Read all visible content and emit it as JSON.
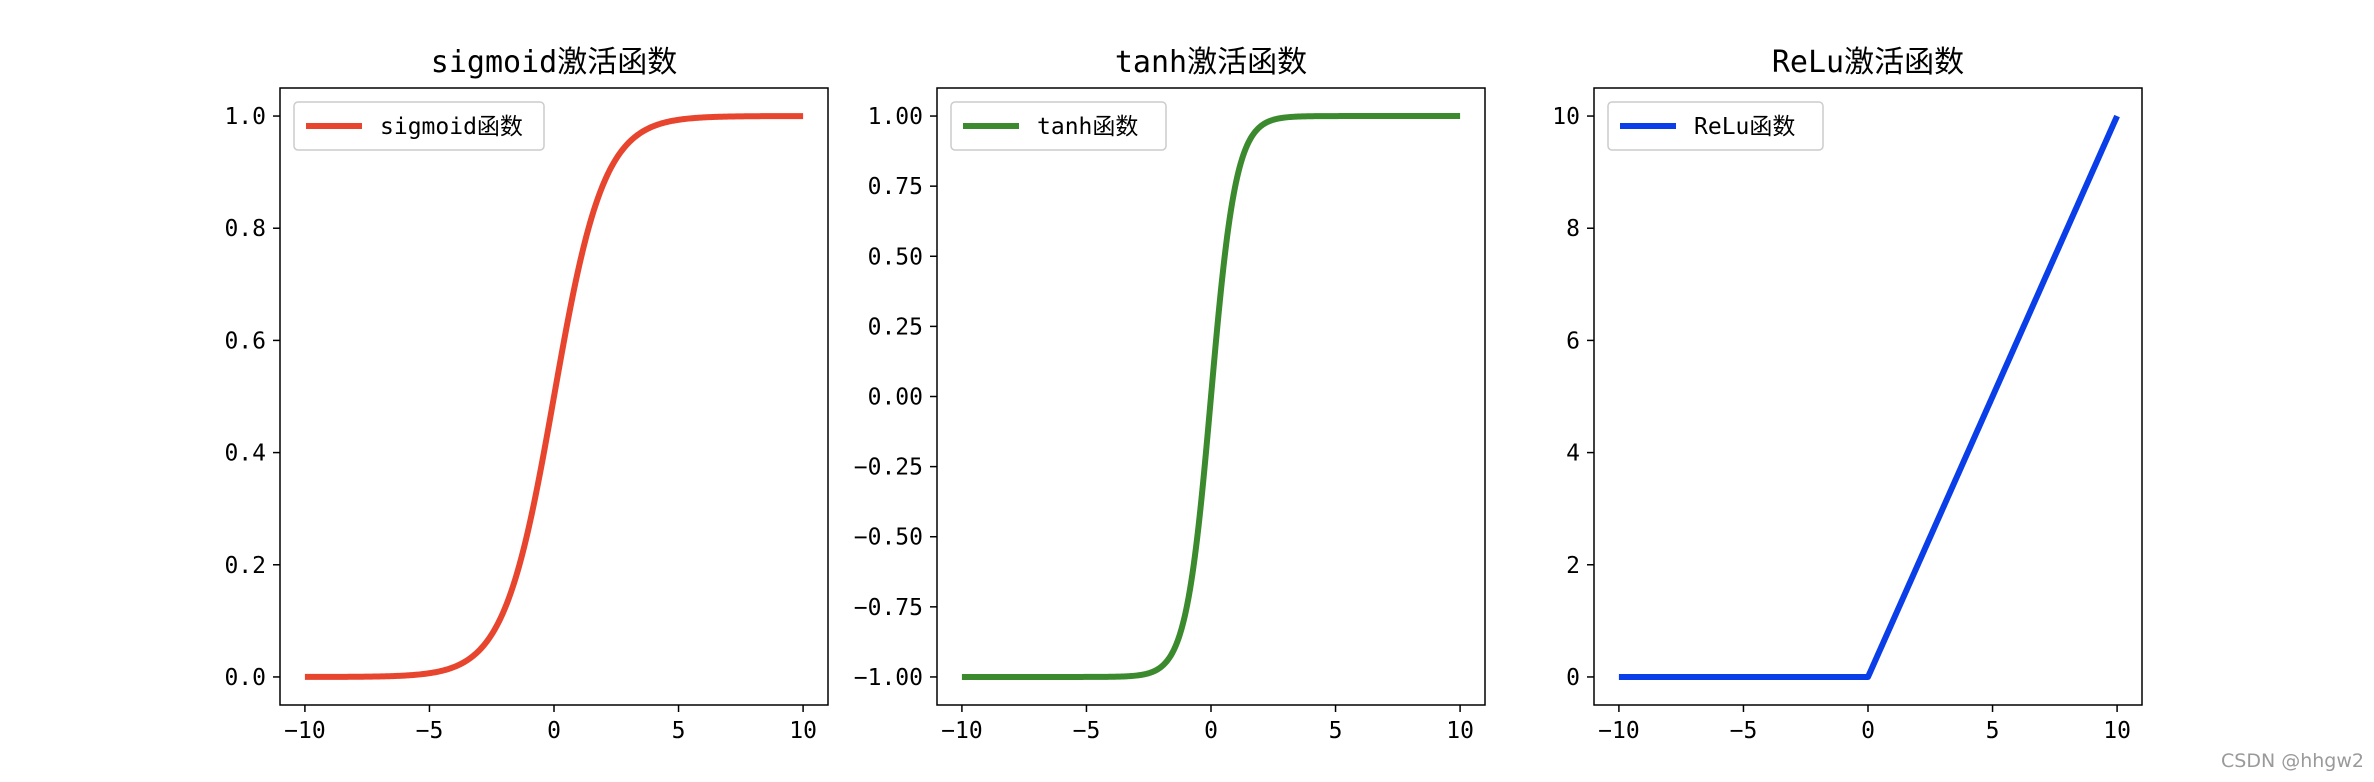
{
  "chart_data": [
    {
      "type": "line",
      "title": "sigmoid激活函数",
      "legend": "top-left",
      "grid": false,
      "xlim": [
        -11,
        11
      ],
      "ylim": [
        -0.05,
        1.05
      ],
      "xticks": [
        -10,
        -5,
        0,
        5,
        10
      ],
      "yticks": [
        0.0,
        0.2,
        0.4,
        0.6,
        0.8,
        1.0
      ],
      "xtick_labels": [
        "−10",
        "−5",
        "0",
        "5",
        "10"
      ],
      "ytick_labels": [
        "0.0",
        "0.2",
        "0.4",
        "0.6",
        "0.8",
        "1.0"
      ],
      "series": [
        {
          "name": "sigmoid函数",
          "color": "#e8452f",
          "function": "sigmoid",
          "x": [
            -10,
            -8,
            -6,
            -5,
            -4,
            -3,
            -2,
            -1,
            0,
            1,
            2,
            3,
            4,
            5,
            6,
            8,
            10
          ],
          "y": [
            5e-05,
            0.0003,
            0.0025,
            0.0067,
            0.018,
            0.047,
            0.119,
            0.269,
            0.5,
            0.731,
            0.881,
            0.953,
            0.982,
            0.993,
            0.9975,
            0.9997,
            0.99995
          ]
        }
      ]
    },
    {
      "type": "line",
      "title": "tanh激活函数",
      "legend": "top-left",
      "grid": false,
      "xlim": [
        -11,
        11
      ],
      "ylim": [
        -1.1,
        1.1
      ],
      "xticks": [
        -10,
        -5,
        0,
        5,
        10
      ],
      "yticks": [
        -1.0,
        -0.75,
        -0.5,
        -0.25,
        0.0,
        0.25,
        0.5,
        0.75,
        1.0
      ],
      "xtick_labels": [
        "−10",
        "−5",
        "0",
        "5",
        "10"
      ],
      "ytick_labels": [
        "−1.00",
        "−0.75",
        "−0.50",
        "−0.25",
        "0.00",
        "0.25",
        "0.50",
        "0.75",
        "1.00"
      ],
      "series": [
        {
          "name": "tanh函数",
          "color": "#3b8a2e",
          "function": "tanh",
          "x": [
            -10,
            -5,
            -3,
            -2,
            -1,
            0,
            1,
            2,
            3,
            5,
            10
          ],
          "y": [
            -1.0,
            -0.9999,
            -0.995,
            -0.964,
            -0.762,
            0.0,
            0.762,
            0.964,
            0.995,
            0.9999,
            1.0
          ]
        }
      ]
    },
    {
      "type": "line",
      "title": "ReLu激活函数",
      "legend": "top-left",
      "grid": false,
      "xlim": [
        -11,
        11
      ],
      "ylim": [
        -0.5,
        10.5
      ],
      "xticks": [
        -10,
        -5,
        0,
        5,
        10
      ],
      "yticks": [
        0,
        2,
        4,
        6,
        8,
        10
      ],
      "xtick_labels": [
        "−10",
        "−5",
        "0",
        "5",
        "10"
      ],
      "ytick_labels": [
        "0",
        "2",
        "4",
        "6",
        "8",
        "10"
      ],
      "series": [
        {
          "name": "ReLu函数",
          "color": "#0a3ee8",
          "function": "relu",
          "x": [
            -10,
            -5,
            0,
            5,
            10
          ],
          "y": [
            0,
            0,
            0,
            5,
            10
          ]
        }
      ]
    }
  ],
  "watermark": "CSDN @hhgw2"
}
